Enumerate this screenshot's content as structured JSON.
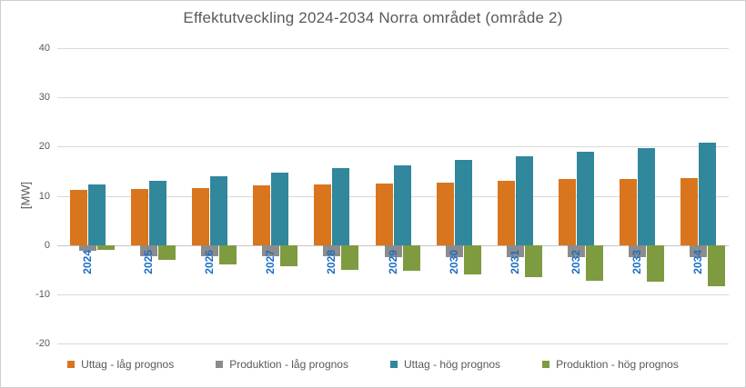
{
  "chart_data": {
    "type": "bar",
    "title": "Effektutveckling 2024-2034 Norra området (område 2)",
    "ylabel": "[MW]",
    "ylim": [
      -20,
      40
    ],
    "yticks": [
      40,
      30,
      20,
      10,
      0,
      -10,
      -20
    ],
    "grid": true,
    "legend_position": "bottom",
    "categories": [
      "2024",
      "2025",
      "2026",
      "2027",
      "2028",
      "2029",
      "2030",
      "2031",
      "2032",
      "2033",
      "2034"
    ],
    "series": [
      {
        "name": "Uttag - låg prognos",
        "color": "#D9751D",
        "values": [
          11.3,
          11.4,
          11.6,
          12.1,
          12.4,
          12.5,
          12.6,
          13.1,
          13.4,
          13.5,
          13.6
        ]
      },
      {
        "name": "Produktion - låg prognos",
        "color": "#8C8C8C",
        "values": [
          -1.2,
          -2.2,
          -2.2,
          -2.3,
          -2.3,
          -2.4,
          -2.4,
          -2.4,
          -2.4,
          -2.4,
          -2.4
        ]
      },
      {
        "name": "Uttag - hög prognos",
        "color": "#31879B",
        "values": [
          12.4,
          13.0,
          14.0,
          14.7,
          15.7,
          16.2,
          17.3,
          18.0,
          19.0,
          19.7,
          20.8
        ]
      },
      {
        "name": "Produktion - hög prognos",
        "color": "#7E9B40",
        "values": [
          -1.0,
          -3.0,
          -3.9,
          -4.3,
          -5.0,
          -5.3,
          -6.0,
          -6.5,
          -7.3,
          -7.4,
          -8.4
        ]
      }
    ],
    "colors": {
      "category_label": "#1C6FC4",
      "axis_text": "#595959",
      "gridline": "#D9D9D9"
    }
  }
}
